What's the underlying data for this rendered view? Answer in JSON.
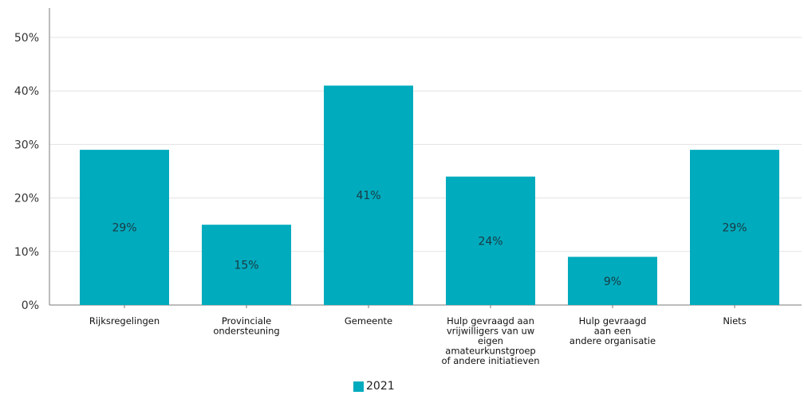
{
  "chart_data": {
    "type": "bar",
    "categories": [
      [
        "Rijksregelingen"
      ],
      [
        "Provinciale",
        "ondersteuning"
      ],
      [
        "Gemeente"
      ],
      [
        "Hulp gevraagd aan",
        "vrijwilligers van uw",
        "eigen",
        "amateurkunstgroep",
        "of andere initiatieven"
      ],
      [
        "Hulp gevraagd",
        "aan een",
        "andere organisatie"
      ],
      [
        "Niets"
      ]
    ],
    "series": [
      {
        "name": "2021",
        "values": [
          29,
          15,
          41,
          24,
          9,
          29
        ],
        "labels": [
          "29%",
          "15%",
          "41%",
          "24%",
          "9%",
          "29%"
        ],
        "color": "#00abbd"
      }
    ],
    "yticks": [
      "0%",
      "10%",
      "20%",
      "30%",
      "40%",
      "50%"
    ],
    "ylim": [
      0,
      50
    ],
    "grid": true,
    "legend_position": "bottom"
  }
}
